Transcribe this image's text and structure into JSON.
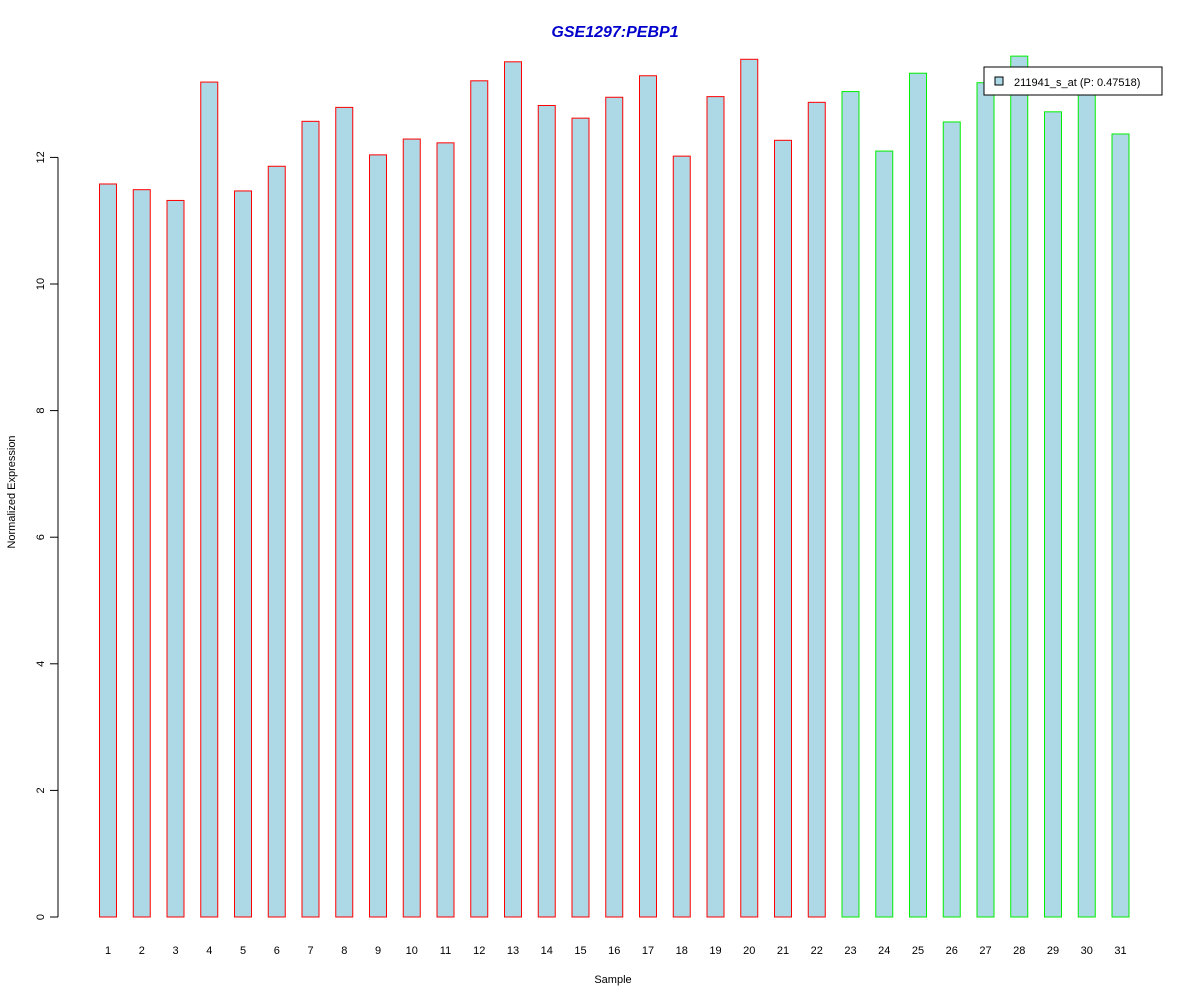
{
  "chart_data": {
    "type": "bar",
    "title": "GSE1297:PEBP1",
    "xlabel": "Sample",
    "ylabel": "Normalized Expression",
    "ylim": [
      0,
      13.5
    ],
    "yticks": [
      "0",
      "2",
      "4",
      "6",
      "8",
      "10",
      "12"
    ],
    "categories": [
      "1",
      "2",
      "3",
      "4",
      "5",
      "6",
      "7",
      "8",
      "9",
      "10",
      "11",
      "12",
      "13",
      "14",
      "15",
      "16",
      "17",
      "18",
      "19",
      "20",
      "21",
      "22",
      "23",
      "24",
      "25",
      "26",
      "27",
      "28",
      "29",
      "30",
      "31"
    ],
    "series": [
      {
        "name": "211941_s_at (P: 0.47518)",
        "values": [
          11.58,
          11.49,
          11.32,
          13.19,
          11.47,
          11.86,
          12.57,
          12.79,
          12.04,
          12.29,
          12.23,
          13.21,
          13.51,
          12.82,
          12.62,
          12.95,
          13.29,
          12.02,
          12.96,
          13.55,
          12.27,
          12.87,
          13.04,
          12.1,
          13.33,
          12.56,
          13.18,
          13.6,
          12.72,
          13.07,
          12.37
        ]
      }
    ],
    "group_outline": [
      "red",
      "red",
      "red",
      "red",
      "red",
      "red",
      "red",
      "red",
      "red",
      "red",
      "red",
      "red",
      "red",
      "red",
      "red",
      "red",
      "red",
      "red",
      "red",
      "red",
      "red",
      "red",
      "green",
      "green",
      "green",
      "green",
      "green",
      "green",
      "green",
      "green",
      "green"
    ],
    "legend_position": "top-right",
    "grid": false
  },
  "colors": {
    "title": "#0000cc",
    "bar_fill": "#add8e6",
    "group_red": "#ff0000",
    "group_green": "#00ee00",
    "axis": "#000000"
  }
}
